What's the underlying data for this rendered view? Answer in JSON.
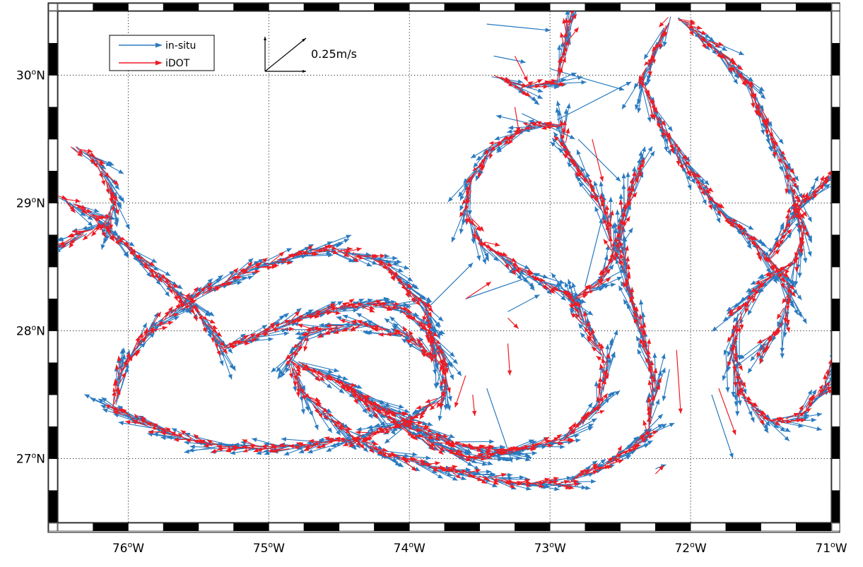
{
  "chart_data": {
    "type": "quiver",
    "xlim": [
      -76.5,
      -71.0
    ],
    "ylim": [
      26.5,
      30.5
    ],
    "grid": true,
    "grid_style": "dotted",
    "legend_position": "top-left",
    "x_ticks": [
      {
        "value": -76,
        "deg": "76",
        "hemi": "W"
      },
      {
        "value": -75,
        "deg": "75",
        "hemi": "W"
      },
      {
        "value": -74,
        "deg": "74",
        "hemi": "W"
      },
      {
        "value": -73,
        "deg": "73",
        "hemi": "W"
      },
      {
        "value": -72,
        "deg": "72",
        "hemi": "W"
      },
      {
        "value": -71,
        "deg": "71",
        "hemi": "W"
      }
    ],
    "y_ticks": [
      {
        "value": 27,
        "deg": "27",
        "hemi": "N"
      },
      {
        "value": 28,
        "deg": "28",
        "hemi": "N"
      },
      {
        "value": 29,
        "deg": "29",
        "hemi": "N"
      },
      {
        "value": 30,
        "deg": "30",
        "hemi": "N"
      }
    ],
    "deg_symbol": "o",
    "reference_vector": {
      "label": "0.25m/s",
      "speed_ms": 0.25
    },
    "series": [
      {
        "name": "in-situ",
        "color": "#2a7abf"
      },
      {
        "name": "iDOT",
        "color": "#ee1c24"
      }
    ],
    "tracks": [
      {
        "name": "northwest-track",
        "points": [
          [
            -76.4,
            29.45
          ],
          [
            -76.25,
            29.35
          ],
          [
            -76.15,
            29.2
          ],
          [
            -76.1,
            29.0
          ],
          [
            -76.15,
            28.85
          ],
          [
            -76.35,
            28.75
          ],
          [
            -76.5,
            28.65
          ]
        ]
      },
      {
        "name": "west-diagonal",
        "points": [
          [
            -76.5,
            29.05
          ],
          [
            -76.25,
            28.9
          ],
          [
            -76.0,
            28.65
          ],
          [
            -75.8,
            28.45
          ],
          [
            -75.55,
            28.2
          ],
          [
            -75.4,
            28.0
          ],
          [
            -75.35,
            27.85
          ]
        ]
      },
      {
        "name": "western-eddy",
        "points": [
          [
            -75.35,
            27.85
          ],
          [
            -75.1,
            27.95
          ],
          [
            -74.8,
            28.1
          ],
          [
            -74.4,
            28.2
          ],
          [
            -74.1,
            28.2
          ],
          [
            -73.9,
            28.05
          ],
          [
            -73.75,
            27.8
          ],
          [
            -73.75,
            27.5
          ],
          [
            -74.0,
            27.3
          ],
          [
            -74.4,
            27.15
          ],
          [
            -74.9,
            27.08
          ],
          [
            -75.4,
            27.1
          ],
          [
            -75.85,
            27.25
          ],
          [
            -76.1,
            27.4
          ],
          [
            -76.05,
            27.7
          ],
          [
            -75.85,
            28.0
          ],
          [
            -75.55,
            28.25
          ],
          [
            -75.1,
            28.5
          ],
          [
            -74.6,
            28.65
          ],
          [
            -74.2,
            28.55
          ],
          [
            -73.9,
            28.2
          ],
          [
            -73.8,
            27.75
          ]
        ]
      },
      {
        "name": "inner-loop",
        "points": [
          [
            -73.8,
            27.75
          ],
          [
            -74.0,
            27.95
          ],
          [
            -74.3,
            28.05
          ],
          [
            -74.7,
            28.0
          ],
          [
            -74.85,
            27.78
          ],
          [
            -74.75,
            27.5
          ],
          [
            -74.5,
            27.25
          ],
          [
            -74.2,
            27.05
          ],
          [
            -73.8,
            26.92
          ],
          [
            -73.3,
            26.82
          ],
          [
            -72.9,
            26.8
          ],
          [
            -72.6,
            26.95
          ],
          [
            -72.3,
            27.2
          ],
          [
            -72.25,
            27.6
          ],
          [
            -72.35,
            28.0
          ],
          [
            -72.45,
            28.35
          ],
          [
            -72.5,
            28.7
          ],
          [
            -72.45,
            29.0
          ],
          [
            -72.35,
            29.3
          ]
        ]
      },
      {
        "name": "northwest-loop-return",
        "points": [
          [
            -74.85,
            27.78
          ],
          [
            -74.5,
            27.6
          ],
          [
            -74.1,
            27.35
          ],
          [
            -73.7,
            27.12
          ],
          [
            -73.3,
            27.05
          ],
          [
            -72.9,
            27.15
          ],
          [
            -72.65,
            27.4
          ],
          [
            -72.6,
            27.75
          ],
          [
            -72.75,
            28.05
          ],
          [
            -72.85,
            28.25
          ]
        ]
      },
      {
        "name": "loop-west-branch",
        "points": [
          [
            -74.5,
            27.62
          ],
          [
            -74.2,
            27.35
          ],
          [
            -73.9,
            27.15
          ],
          [
            -73.6,
            27.0
          ],
          [
            -73.3,
            27.05
          ]
        ]
      },
      {
        "name": "central-eddy",
        "points": [
          [
            -72.85,
            28.25
          ],
          [
            -72.65,
            28.35
          ],
          [
            -72.55,
            28.6
          ],
          [
            -72.6,
            28.9
          ],
          [
            -72.75,
            29.2
          ],
          [
            -72.9,
            29.45
          ],
          [
            -72.9,
            29.6
          ],
          [
            -73.15,
            29.6
          ],
          [
            -73.4,
            29.45
          ],
          [
            -73.55,
            29.2
          ],
          [
            -73.6,
            28.95
          ],
          [
            -73.5,
            28.7
          ],
          [
            -73.25,
            28.5
          ],
          [
            -73.0,
            28.35
          ],
          [
            -72.85,
            28.25
          ]
        ]
      },
      {
        "name": "north-hook",
        "points": [
          [
            -73.4,
            30.0
          ],
          [
            -73.2,
            29.9
          ],
          [
            -72.95,
            29.95
          ],
          [
            -72.9,
            30.2
          ],
          [
            -72.85,
            30.45
          ]
        ]
      },
      {
        "name": "eastern-ribbon",
        "points": [
          [
            -72.1,
            30.45
          ],
          [
            -71.85,
            30.25
          ],
          [
            -71.6,
            29.95
          ],
          [
            -71.45,
            29.6
          ],
          [
            -71.3,
            29.2
          ],
          [
            -71.2,
            28.8
          ],
          [
            -71.25,
            28.55
          ],
          [
            -71.45,
            28.4
          ],
          [
            -71.65,
            28.15
          ],
          [
            -71.7,
            27.8
          ],
          [
            -71.65,
            27.5
          ],
          [
            -71.45,
            27.3
          ],
          [
            -71.25,
            27.3
          ],
          [
            -71.05,
            27.55
          ],
          [
            -71.0,
            27.7
          ]
        ]
      },
      {
        "name": "eastern-ribbon-west",
        "points": [
          [
            -72.15,
            30.45
          ],
          [
            -72.25,
            30.2
          ],
          [
            -72.35,
            29.95
          ],
          [
            -72.2,
            29.6
          ],
          [
            -72.0,
            29.25
          ],
          [
            -71.8,
            28.95
          ],
          [
            -71.55,
            28.7
          ],
          [
            -71.4,
            28.5
          ],
          [
            -71.3,
            28.3
          ],
          [
            -71.35,
            28.05
          ],
          [
            -71.5,
            27.85
          ]
        ]
      },
      {
        "name": "east-edge",
        "points": [
          [
            -71.45,
            28.55
          ],
          [
            -71.3,
            28.85
          ],
          [
            -71.15,
            29.05
          ],
          [
            -71.0,
            29.2
          ]
        ]
      }
    ],
    "isolated_arrows": [
      {
        "lon": -73.45,
        "lat": 30.4,
        "u": 0.3,
        "v": -0.03,
        "series": "in-situ"
      },
      {
        "lon": -73.4,
        "lat": 30.15,
        "u": 0.15,
        "v": -0.03,
        "series": "in-situ"
      },
      {
        "lon": -73.25,
        "lat": 30.15,
        "u": 0.06,
        "v": -0.12,
        "series": "iDOT"
      },
      {
        "lon": -73.0,
        "lat": 30.05,
        "u": 0.35,
        "v": -0.1,
        "series": "in-situ"
      },
      {
        "lon": -73.2,
        "lat": 29.7,
        "u": 0.25,
        "v": -0.12,
        "series": "in-situ"
      },
      {
        "lon": -73.25,
        "lat": 29.75,
        "u": 0.02,
        "v": -0.12,
        "series": "iDOT"
      },
      {
        "lon": -72.8,
        "lat": 29.5,
        "u": 0.2,
        "v": -0.2,
        "series": "in-situ"
      },
      {
        "lon": -72.7,
        "lat": 29.5,
        "u": 0.05,
        "v": -0.2,
        "series": "iDOT"
      },
      {
        "lon": -72.95,
        "lat": 29.65,
        "u": 0.35,
        "v": 0.18,
        "series": "in-situ"
      },
      {
        "lon": -72.75,
        "lat": 28.35,
        "u": 0.08,
        "v": 0.32,
        "series": "in-situ"
      },
      {
        "lon": -73.85,
        "lat": 28.2,
        "u": 0.2,
        "v": 0.2,
        "series": "in-situ"
      },
      {
        "lon": -73.6,
        "lat": 28.25,
        "u": 0.35,
        "v": 0.12,
        "series": "in-situ"
      },
      {
        "lon": -73.6,
        "lat": 28.25,
        "u": 0.12,
        "v": 0.08,
        "series": "iDOT"
      },
      {
        "lon": -73.3,
        "lat": 28.15,
        "u": 0.15,
        "v": 0.08,
        "series": "in-situ"
      },
      {
        "lon": -73.3,
        "lat": 28.1,
        "u": 0.05,
        "v": -0.05,
        "series": "iDOT"
      },
      {
        "lon": -73.3,
        "lat": 27.9,
        "u": 0.01,
        "v": -0.15,
        "series": "iDOT"
      },
      {
        "lon": -73.6,
        "lat": 27.65,
        "u": -0.05,
        "v": -0.15,
        "series": "iDOT"
      },
      {
        "lon": -73.55,
        "lat": 27.5,
        "u": 0.01,
        "v": -0.1,
        "series": "iDOT"
      },
      {
        "lon": -73.45,
        "lat": 27.55,
        "u": 0.12,
        "v": -0.35,
        "series": "in-situ"
      },
      {
        "lon": -72.1,
        "lat": 27.85,
        "u": 0.02,
        "v": -0.3,
        "series": "iDOT"
      },
      {
        "lon": -72.15,
        "lat": 27.7,
        "u": -0.03,
        "v": -0.15,
        "series": "in-situ"
      },
      {
        "lon": -71.8,
        "lat": 27.55,
        "u": 0.08,
        "v": -0.22,
        "series": "iDOT"
      },
      {
        "lon": -71.85,
        "lat": 27.5,
        "u": 0.1,
        "v": -0.3,
        "series": "in-situ"
      },
      {
        "lon": -71.75,
        "lat": 27.85,
        "u": 0.01,
        "v": -0.2,
        "series": "in-situ"
      },
      {
        "lon": -72.25,
        "lat": 26.92,
        "u": 0.05,
        "v": 0.02,
        "series": "in-situ"
      },
      {
        "lon": -72.25,
        "lat": 26.88,
        "u": 0.04,
        "v": 0.04,
        "series": "iDOT"
      }
    ]
  }
}
